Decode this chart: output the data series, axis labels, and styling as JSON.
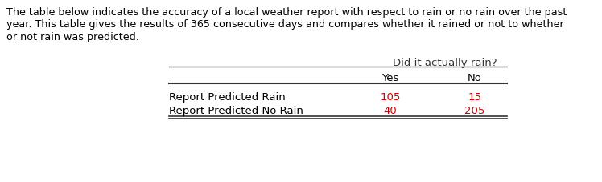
{
  "line1": "The table below indicates the accuracy of a local weather report with respect to rain or no rain over the past",
  "line2": "year. This table gives the results of 365 consecutive days and compares whether it rained or not to whether",
  "line3": "or not rain was predicted.",
  "col_header_main": "Did it actually rain?",
  "col_header_sub": [
    "Yes",
    "No"
  ],
  "row_labels": [
    "Report Predicted Rain",
    "Report Predicted No Rain"
  ],
  "values": [
    [
      105,
      15
    ],
    [
      40,
      205
    ]
  ],
  "value_color": "#cc0000",
  "header_color": "#333333",
  "row_label_color": "#000000",
  "subheader_color": "#000000",
  "bg_color": "#ffffff",
  "text_color": "#000000",
  "para_fontsize": 9.2,
  "table_fontsize": 9.5,
  "fig_width": 7.48,
  "fig_height": 2.27,
  "dpi": 100
}
